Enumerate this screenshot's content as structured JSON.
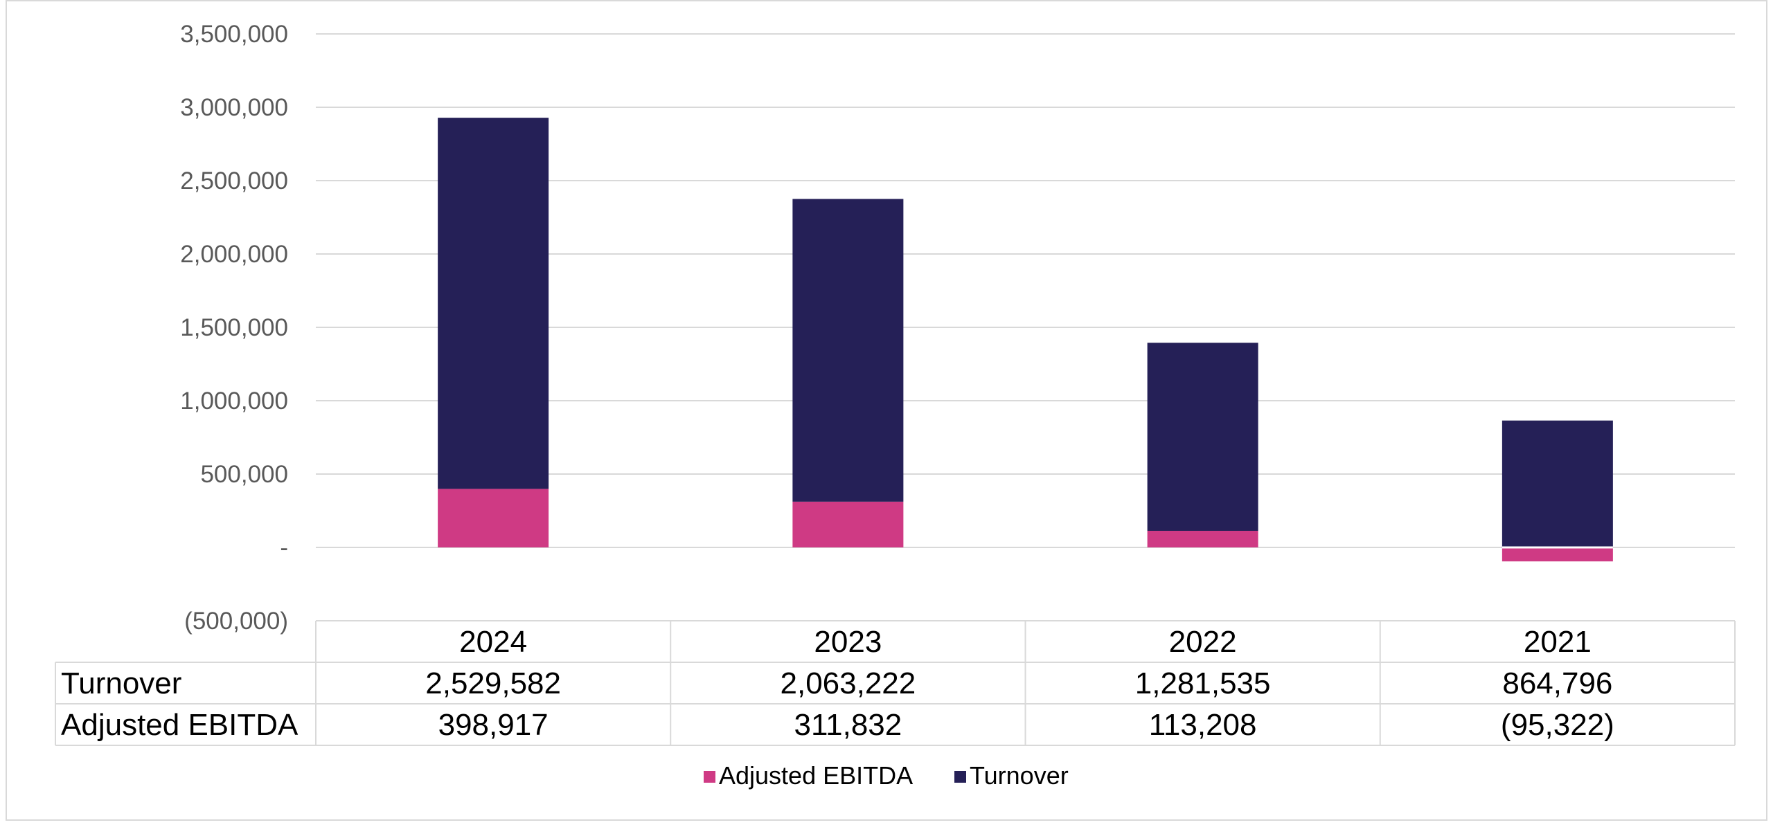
{
  "chart_data": {
    "type": "bar",
    "stacked": true,
    "categories": [
      "2024",
      "2023",
      "2022",
      "2021"
    ],
    "series": [
      {
        "name": "Adjusted EBITDA",
        "color": "#cf3a84",
        "values": [
          398917,
          311832,
          113208,
          -95322
        ],
        "display": [
          "398,917",
          "311,832",
          "113,208",
          "(95,322)"
        ]
      },
      {
        "name": "Turnover",
        "color": "#252057",
        "values": [
          2529582,
          2063222,
          1281535,
          864796
        ],
        "display": [
          "2,529,582",
          "2,063,222",
          "1,281,535",
          "864,796"
        ]
      }
    ],
    "ylim": [
      -500000,
      3500000
    ],
    "yticks": [
      3500000,
      3000000,
      2500000,
      2000000,
      1500000,
      1000000,
      500000,
      0,
      -500000
    ],
    "ytick_labels": [
      "3,500,000",
      "3,000,000",
      "2,500,000",
      "2,000,000",
      "1,500,000",
      "1,000,000",
      "500,000",
      "-",
      "(500,000)"
    ],
    "grid": true,
    "legend_position": "bottom",
    "data_table": true,
    "table_rows": [
      "Turnover",
      "Adjusted EBITDA"
    ]
  },
  "colors": {
    "gridline": "#d9d9d9",
    "table_border": "#d9d9d9"
  }
}
